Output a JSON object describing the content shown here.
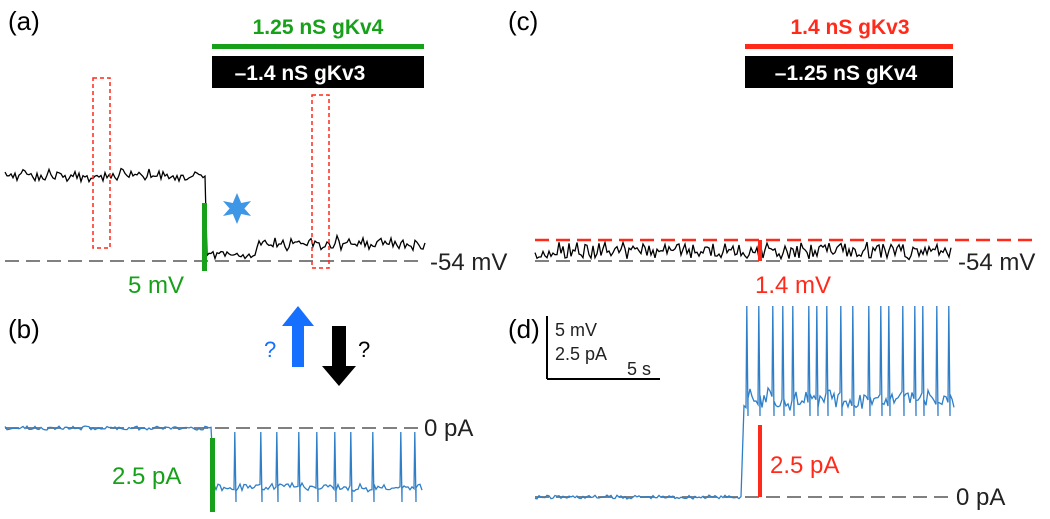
{
  "panels": {
    "a": {
      "label": "(a)",
      "bar_top": "1.25 nS gKv4",
      "bar_bottom": "–1.4  nS gKv3",
      "resting": "-54 mV",
      "scale": "5 mV"
    },
    "b": {
      "label": "(b)",
      "zero": "0 pA",
      "scale": "2.5 pA",
      "q_up": "?",
      "q_down": "?"
    },
    "c": {
      "label": "(c)",
      "bar_top": "1.4  nS gKv3",
      "bar_bottom": "–1.25  nS gKv4",
      "resting": "-54 mV",
      "scale": "1.4 mV"
    },
    "d": {
      "label": "(d)",
      "zero": "0 pA",
      "scale": "2.5 pA",
      "scalebar_voltage": "5 mV",
      "scalebar_current": "2.5 pA",
      "scalebar_time": "5 s"
    }
  },
  "colors": {
    "green": "#17a019",
    "red": "#ff2a1a",
    "blue_trace": "#2f7fc8",
    "blue_arrow": "#1670ff",
    "black": "#000000",
    "star": "#3d96e6"
  }
}
